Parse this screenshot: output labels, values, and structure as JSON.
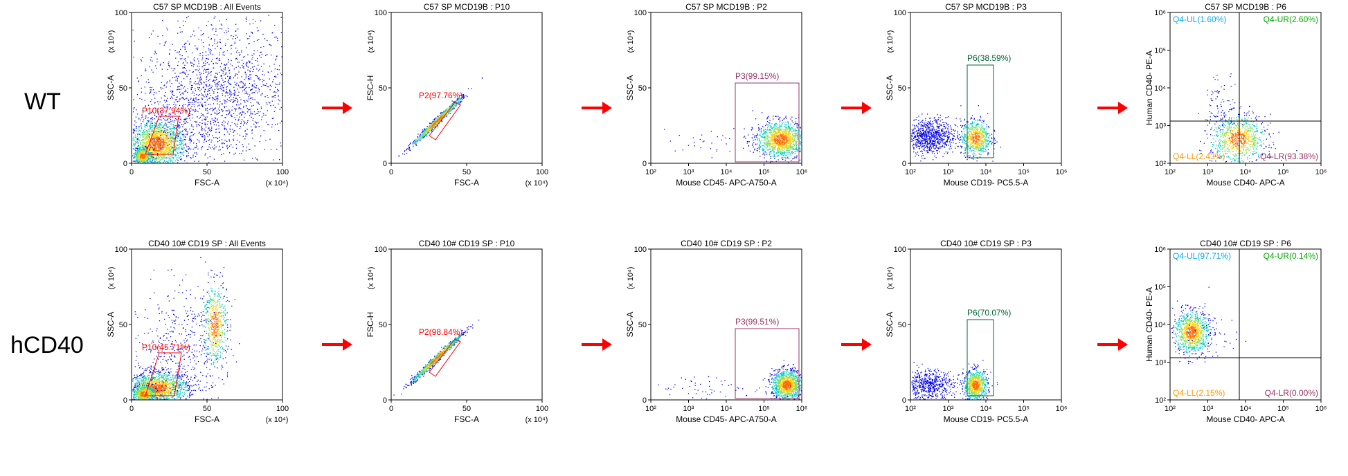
{
  "rows": [
    {
      "label": "WT",
      "panels": [
        {
          "kind": "lin",
          "title": "C57 SP MCD19B : All Events",
          "xlabel": "FSC-A",
          "ylabel": "SSC-A",
          "xmult": "(x 10⁴)",
          "ymult": "(x 10⁴)",
          "gate": {
            "type": "poly",
            "label": "P10(37.94%)",
            "color": "#ff0000"
          },
          "pop": "wt-all"
        },
        {
          "kind": "lin",
          "title": "C57 SP MCD19B : P10",
          "xlabel": "FSC-A",
          "ylabel": "FSC-H",
          "xmult": "(x 10⁴)",
          "ymult": "(x 10⁴)",
          "gate": {
            "type": "poly",
            "label": "P2(97.76%)",
            "color": "#ff0000"
          },
          "pop": "diag"
        },
        {
          "kind": "logx",
          "title": "C57 SP MCD19B : P2",
          "xlabel": "Mouse CD45- APC-A750-A",
          "ylabel": "SSC-A",
          "ymult": "(x 10⁴)",
          "gate": {
            "type": "rect",
            "label": "P3(99.15%)",
            "color": "#993366"
          },
          "pop": "cd45"
        },
        {
          "kind": "logx",
          "title": "C57 SP MCD19B : P3",
          "xlabel": "Mouse CD19- PC5.5-A",
          "ylabel": "SSC-A",
          "ymult": "(x 10⁴)",
          "gate": {
            "type": "rect",
            "label": "P6(38.59%)",
            "color": "#006633"
          },
          "pop": "wt-cd19"
        },
        {
          "kind": "quad",
          "title": "C57 SP MCD19B : P6",
          "xlabel": "Mouse CD40- APC-A",
          "ylabel": "Human CD40- PE-A",
          "quads": {
            "UL": "Q4-UL(1.60%)",
            "UR": "Q4-UR(2.60%)",
            "LL": "Q4-LL(2.43%)",
            "LR": "Q4-LR(93.38%)"
          },
          "pop": "wt-q"
        }
      ]
    },
    {
      "label": "hCD40",
      "panels": [
        {
          "kind": "lin",
          "title": "CD40 10# CD19 SP : All Events",
          "xlabel": "FSC-A",
          "ylabel": "SSC-A",
          "xmult": "(x 10⁴)",
          "ymult": "(x 10⁴)",
          "gate": {
            "type": "poly",
            "label": "P10(45.71%)",
            "color": "#ff0000"
          },
          "pop": "h-all"
        },
        {
          "kind": "lin",
          "title": "CD40 10# CD19 SP : P10",
          "xlabel": "FSC-A",
          "ylabel": "FSC-H",
          "xmult": "(x 10⁴)",
          "ymult": "(x 10⁴)",
          "gate": {
            "type": "poly",
            "label": "P2(98.84%)",
            "color": "#ff0000"
          },
          "pop": "diag"
        },
        {
          "kind": "logx",
          "title": "CD40 10# CD19 SP : P2",
          "xlabel": "Mouse CD45- APC-A750-A",
          "ylabel": "SSC-A",
          "ymult": "(x 10⁴)",
          "gate": {
            "type": "rect",
            "label": "P3(99.51%)",
            "color": "#993366"
          },
          "pop": "h-cd45"
        },
        {
          "kind": "logx",
          "title": "CD40 10# CD19 SP : P3",
          "xlabel": "Mouse CD19- PC5.5-A",
          "ylabel": "SSC-A",
          "ymult": "(x 10⁴)",
          "gate": {
            "type": "rect",
            "label": "P6(70.07%)",
            "color": "#006633"
          },
          "pop": "h-cd19"
        },
        {
          "kind": "quad",
          "title": "CD40 10# CD19 SP : P6",
          "xlabel": "Mouse CD40- APC-A",
          "ylabel": "Human CD40- PE-A",
          "quads": {
            "UL": "Q4-UL(97.71%)",
            "UR": "Q4-UR(0.14%)",
            "LL": "Q4-LL(2.15%)",
            "LR": "Q4-LR(0.00%)"
          },
          "pop": "h-q"
        }
      ]
    }
  ],
  "chart_data": [
    {
      "type": "scatter",
      "title": "C57 SP MCD19B : All Events",
      "xlabel": "FSC-A",
      "ylabel": "SSC-A",
      "xlim": [
        0,
        100
      ],
      "ylim": [
        0,
        100
      ],
      "gate": "P10(37.94%)"
    },
    {
      "type": "scatter",
      "title": "C57 SP MCD19B : P10",
      "xlabel": "FSC-A",
      "ylabel": "FSC-H",
      "xlim": [
        0,
        100
      ],
      "ylim": [
        0,
        100
      ],
      "gate": "P2(97.76%)"
    },
    {
      "type": "scatter",
      "title": "C57 SP MCD19B : P2",
      "xlabel": "Mouse CD45- APC-A750-A",
      "ylabel": "SSC-A",
      "xlim": [
        100,
        1000000
      ],
      "xscale": "log",
      "ylim": [
        0,
        100
      ],
      "gate": "P3(99.15%)"
    },
    {
      "type": "scatter",
      "title": "C57 SP MCD19B : P3",
      "xlabel": "Mouse CD19- PC5.5-A",
      "ylabel": "SSC-A",
      "xlim": [
        100,
        1000000
      ],
      "xscale": "log",
      "ylim": [
        0,
        100
      ],
      "gate": "P6(38.59%)"
    },
    {
      "type": "scatter",
      "title": "C57 SP MCD19B : P6",
      "xlabel": "Mouse CD40- APC-A",
      "ylabel": "Human CD40- PE-A",
      "xlim": [
        100,
        1000000
      ],
      "ylim": [
        100,
        1000000
      ],
      "xscale": "log",
      "yscale": "log",
      "quadrants": {
        "UL": 1.6,
        "UR": 2.6,
        "LL": 2.43,
        "LR": 93.38
      }
    },
    {
      "type": "scatter",
      "title": "CD40 10# CD19 SP : All Events",
      "xlabel": "FSC-A",
      "ylabel": "SSC-A",
      "xlim": [
        0,
        100
      ],
      "ylim": [
        0,
        100
      ],
      "gate": "P10(45.71%)"
    },
    {
      "type": "scatter",
      "title": "CD40 10# CD19 SP : P10",
      "xlabel": "FSC-A",
      "ylabel": "FSC-H",
      "xlim": [
        0,
        100
      ],
      "ylim": [
        0,
        100
      ],
      "gate": "P2(98.84%)"
    },
    {
      "type": "scatter",
      "title": "CD40 10# CD19 SP : P2",
      "xlabel": "Mouse CD45- APC-A750-A",
      "ylabel": "SSC-A",
      "xlim": [
        100,
        1000000
      ],
      "xscale": "log",
      "ylim": [
        0,
        100
      ],
      "gate": "P3(99.51%)"
    },
    {
      "type": "scatter",
      "title": "CD40 10# CD19 SP : P3",
      "xlabel": "Mouse CD19- PC5.5-A",
      "ylabel": "SSC-A",
      "xlim": [
        100,
        1000000
      ],
      "xscale": "log",
      "ylim": [
        0,
        100
      ],
      "gate": "P6(70.07%)"
    },
    {
      "type": "scatter",
      "title": "CD40 10# CD19 SP : P6",
      "xlabel": "Mouse CD40- APC-A",
      "ylabel": "Human CD40- PE-A",
      "xlim": [
        100,
        1000000
      ],
      "ylim": [
        100,
        1000000
      ],
      "xscale": "log",
      "yscale": "log",
      "quadrants": {
        "UL": 97.71,
        "UR": 0.14,
        "LL": 2.15,
        "LR": 0.0
      }
    }
  ],
  "ticks": {
    "lin": [
      "0",
      "50",
      "100"
    ],
    "log": [
      "10²",
      "10³",
      "10⁴",
      "10⁵",
      "10⁶"
    ]
  },
  "colors": {
    "dots": "#0000ee",
    "density_mid": "#00c8c8",
    "density_high": "#ffd000",
    "arrow": "#ff0000"
  }
}
